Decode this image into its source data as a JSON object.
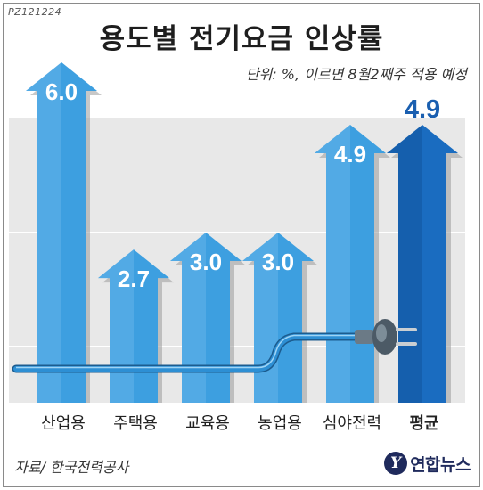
{
  "code": "PZ121224",
  "title": "용도별 전기요금 인상률",
  "unit_note": "단위: %, 이르면 8월2째주 적용 예정",
  "source": "자료/ 한국전력공사",
  "logo": {
    "mark": "Y",
    "text": "연합뉴스"
  },
  "colors": {
    "bar": "#3d9fe0",
    "bar_light": "#6cb8ec",
    "avg_bar": "#1a6cc0",
    "avg_bar_dark": "#0f4f96",
    "shadow": "#9a9a9a",
    "band": "#e8e8e8",
    "cable": "#2d8fd4"
  },
  "chart_data": {
    "type": "bar",
    "title": "용도별 전기요금 인상률",
    "categories": [
      "산업용",
      "주택용",
      "교육용",
      "농업용",
      "심야전력",
      "평균"
    ],
    "values": [
      6.0,
      2.7,
      3.0,
      3.0,
      4.9,
      4.9
    ],
    "value_labels": [
      "6.0",
      "2.7",
      "3.0",
      "3.0",
      "4.9",
      "4.9"
    ],
    "highlight_index": 5,
    "ylim": [
      0,
      6.5
    ],
    "unit": "%",
    "grid": "banded"
  }
}
